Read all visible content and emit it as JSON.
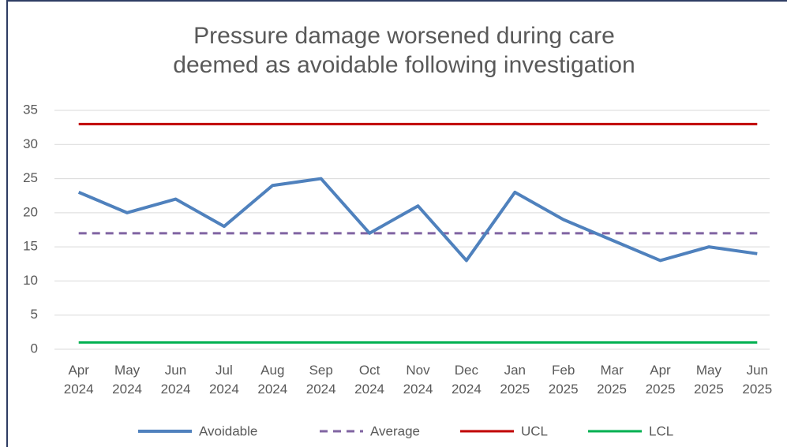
{
  "chart_data": {
    "type": "line",
    "title": [
      "Pressure damage worsened during care",
      "deemed as avoidable following investigation"
    ],
    "categories": [
      "Apr 2024",
      "May 2024",
      "Jun 2024",
      "Jul 2024",
      "Aug 2024",
      "Sep 2024",
      "Oct 2024",
      "Nov 2024",
      "Dec 2024",
      "Jan 2025",
      "Feb 2025",
      "Mar 2025",
      "Apr 2025",
      "May 2025",
      "Jun 2025"
    ],
    "series": [
      {
        "name": "Avoidable",
        "color": "#4f81bd",
        "values": [
          23,
          20,
          22,
          18,
          24,
          25,
          17,
          21,
          13,
          23,
          19,
          16,
          13,
          15,
          14
        ]
      },
      {
        "name": "Average",
        "color": "#8064a2",
        "dashed": true,
        "values": [
          17,
          17,
          17,
          17,
          17,
          17,
          17,
          17,
          17,
          17,
          17,
          17,
          17,
          17,
          17
        ]
      },
      {
        "name": "UCL",
        "color": "#c00000",
        "values": [
          33,
          33,
          33,
          33,
          33,
          33,
          33,
          33,
          33,
          33,
          33,
          33,
          33,
          33,
          33
        ]
      },
      {
        "name": "LCL",
        "color": "#00b050",
        "values": [
          1,
          1,
          1,
          1,
          1,
          1,
          1,
          1,
          1,
          1,
          1,
          1,
          1,
          1,
          1
        ]
      }
    ],
    "ylim": [
      0,
      35
    ],
    "yticks": [
      0,
      5,
      10,
      15,
      20,
      25,
      30,
      35
    ],
    "grid": true,
    "legend": "bottom"
  }
}
